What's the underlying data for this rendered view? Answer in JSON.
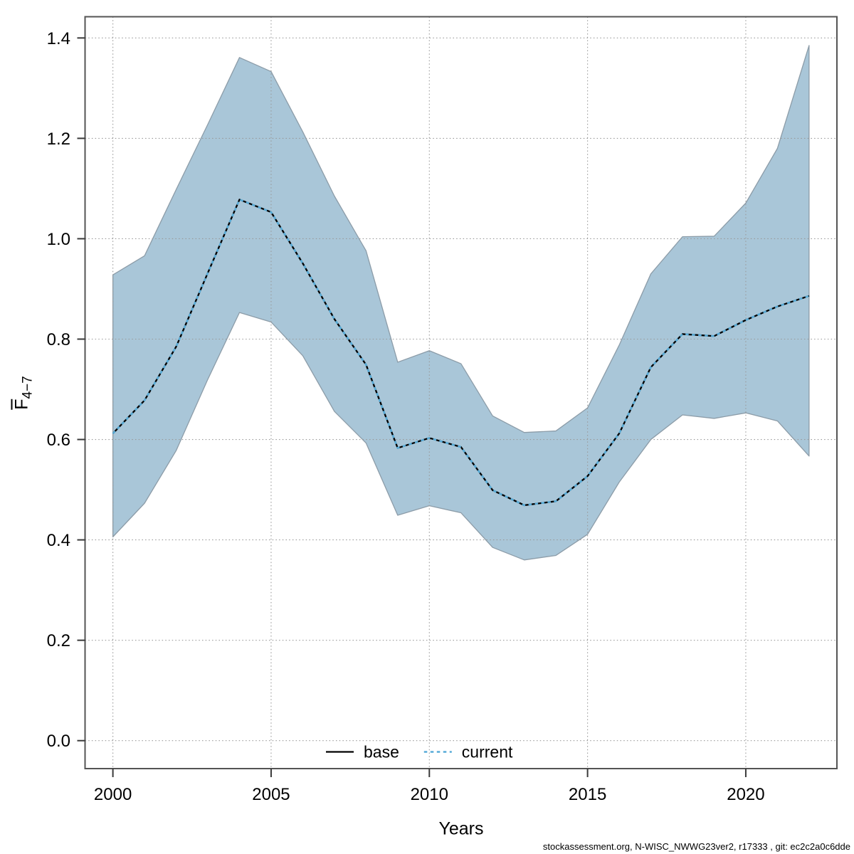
{
  "page": {
    "background": "#ffffff"
  },
  "chart_data": {
    "type": "line",
    "title": "",
    "xlabel": "Years",
    "ylabel": {
      "main": "F",
      "overline": true,
      "subscript": "4−7"
    },
    "x": [
      2000,
      2001,
      2002,
      2003,
      2004,
      2005,
      2006,
      2007,
      2008,
      2009,
      2010,
      2011,
      2012,
      2013,
      2014,
      2015,
      2016,
      2017,
      2018,
      2019,
      2020,
      2021,
      2022
    ],
    "series": [
      {
        "name": "base",
        "line_style": "solid",
        "color": "#000000",
        "values": [
          0.612,
          0.678,
          0.785,
          0.932,
          1.078,
          1.053,
          0.951,
          0.84,
          0.749,
          0.583,
          0.603,
          0.585,
          0.499,
          0.469,
          0.477,
          0.527,
          0.612,
          0.744,
          0.81,
          0.806,
          0.838,
          0.865,
          0.886
        ]
      },
      {
        "name": "current",
        "line_style": "dotted",
        "color": "#58ACD8",
        "values": [
          0.612,
          0.678,
          0.785,
          0.932,
          1.078,
          1.053,
          0.951,
          0.84,
          0.749,
          0.583,
          0.603,
          0.585,
          0.499,
          0.469,
          0.477,
          0.527,
          0.612,
          0.744,
          0.81,
          0.806,
          0.838,
          0.865,
          0.886
        ]
      }
    ],
    "confidence_band": {
      "applies_to": "current",
      "lower": [
        0.406,
        0.473,
        0.578,
        0.72,
        0.853,
        0.834,
        0.767,
        0.656,
        0.593,
        0.449,
        0.468,
        0.454,
        0.385,
        0.36,
        0.369,
        0.411,
        0.515,
        0.6,
        0.649,
        0.642,
        0.653,
        0.637,
        0.567
      ],
      "upper": [
        0.928,
        0.966,
        1.098,
        1.228,
        1.361,
        1.333,
        1.213,
        1.085,
        0.976,
        0.754,
        0.777,
        0.751,
        0.647,
        0.614,
        0.617,
        0.663,
        0.788,
        0.93,
        1.004,
        1.005,
        1.071,
        1.18,
        1.385
      ],
      "fill": "#A9C6D8",
      "edge_color": "#8C9CA8"
    },
    "xticks": [
      2000,
      2005,
      2010,
      2015,
      2020
    ],
    "yticks": [
      0.0,
      0.2,
      0.4,
      0.6,
      0.8,
      1.0,
      1.2,
      1.4
    ],
    "xlim": [
      1999.12,
      2022.88
    ],
    "ylim": [
      -0.0557,
      1.4423
    ],
    "grid": true,
    "grid_style": "dotted",
    "grid_color": "#999999",
    "frame_color": "#545454",
    "tick_color": "#3a3a3a",
    "text_color": "#000000",
    "legend_position": "bottom-center-inside",
    "legend": [
      {
        "label": "base",
        "style": "solid",
        "color": "#000000"
      },
      {
        "label": "current",
        "style": "dotted",
        "color": "#58ACD8"
      }
    ]
  },
  "footer": {
    "text": "stockassessment.org, N-WISC_NWWG23ver2, r17333 , git: ec2c2a0c6dde"
  }
}
